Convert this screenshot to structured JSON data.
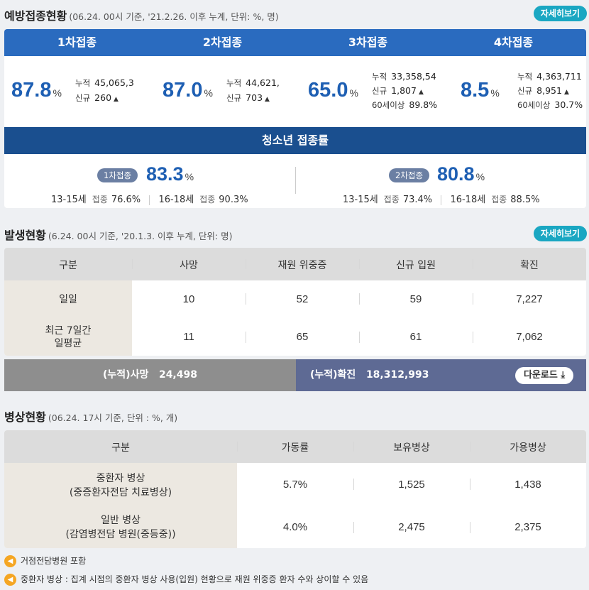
{
  "vaccination": {
    "title": "예방접종현황",
    "note": "(06.24. 00시 기준, '21.2.26. 이후 누계, 단위: %, 명)",
    "more": "자세히보기",
    "doses": [
      {
        "label": "1차접종",
        "pct": "87.8",
        "unit": "%",
        "cum_label": "누적",
        "cum": "45,065,3",
        "new_label": "신규",
        "new": "260"
      },
      {
        "label": "2차접종",
        "pct": "87.0",
        "unit": "%",
        "cum_label": "누적",
        "cum": "44,621,",
        "new_label": "신규",
        "new": "703"
      },
      {
        "label": "3차접종",
        "pct": "65.0",
        "unit": "%",
        "cum_label": "누적",
        "cum": "33,358,54",
        "new_label": "신규",
        "new": "1,807",
        "sixty_label": "60세이상",
        "sixty": "89.8%"
      },
      {
        "label": "4차접종",
        "pct": "8.5",
        "unit": "%",
        "cum_label": "누적",
        "cum": "4,363,711",
        "new_label": "신규",
        "new": "8,951",
        "sixty_label": "60세이상",
        "sixty": "30.7%"
      }
    ],
    "youth": {
      "title": "청소년 접종률",
      "first": {
        "pill": "1차접종",
        "pct": "83.3",
        "unit": "%",
        "a_age": "13-15세",
        "a_k": "접종",
        "a_v": "76.6%",
        "b_age": "16-18세",
        "b_k": "접종",
        "b_v": "90.3%"
      },
      "second": {
        "pill": "2차접종",
        "pct": "80.8",
        "unit": "%",
        "a_age": "13-15세",
        "a_k": "접종",
        "a_v": "73.4%",
        "b_age": "16-18세",
        "b_k": "접종",
        "b_v": "88.5%"
      }
    }
  },
  "outbreak": {
    "title": "발생현황",
    "note": "(6.24. 00시 기준, '20.1.3. 이후 누계, 단위: 명)",
    "more": "자세히보기",
    "headers": [
      "구분",
      "사망",
      "재원 위중증",
      "신규 입원",
      "확진"
    ],
    "rows": [
      {
        "label": "일일",
        "values": [
          "10",
          "52",
          "59",
          "7,227"
        ]
      },
      {
        "label": "최근 7일간\n일평균",
        "values": [
          "11",
          "65",
          "61",
          "7,062"
        ]
      }
    ],
    "cum_death": "(누적)사망   24,498",
    "cum_confirmed": "(누적)확진   18,312,993",
    "download": "다운로드"
  },
  "beds": {
    "title": "병상현황",
    "note": "(06.24. 17시 기준, 단위 : %, 개)",
    "headers": [
      "구분",
      "가동률",
      "보유병상",
      "가용병상"
    ],
    "rows": [
      {
        "label": "중환자 병상\n(중증환자전담 치료병상)",
        "values": [
          "5.7%",
          "1,525",
          "1,438"
        ]
      },
      {
        "label": "일반 병상\n(감염병전담 병원(중등중))",
        "values": [
          "4.0%",
          "2,475",
          "2,375"
        ]
      }
    ]
  },
  "footnotes": [
    "거점전담병원 포함",
    "중환자 병상 : 집계 시점의 중환자 병상 사용(입원) 현황으로 재원 위중증 환자 수와 상이할 수 있음"
  ]
}
